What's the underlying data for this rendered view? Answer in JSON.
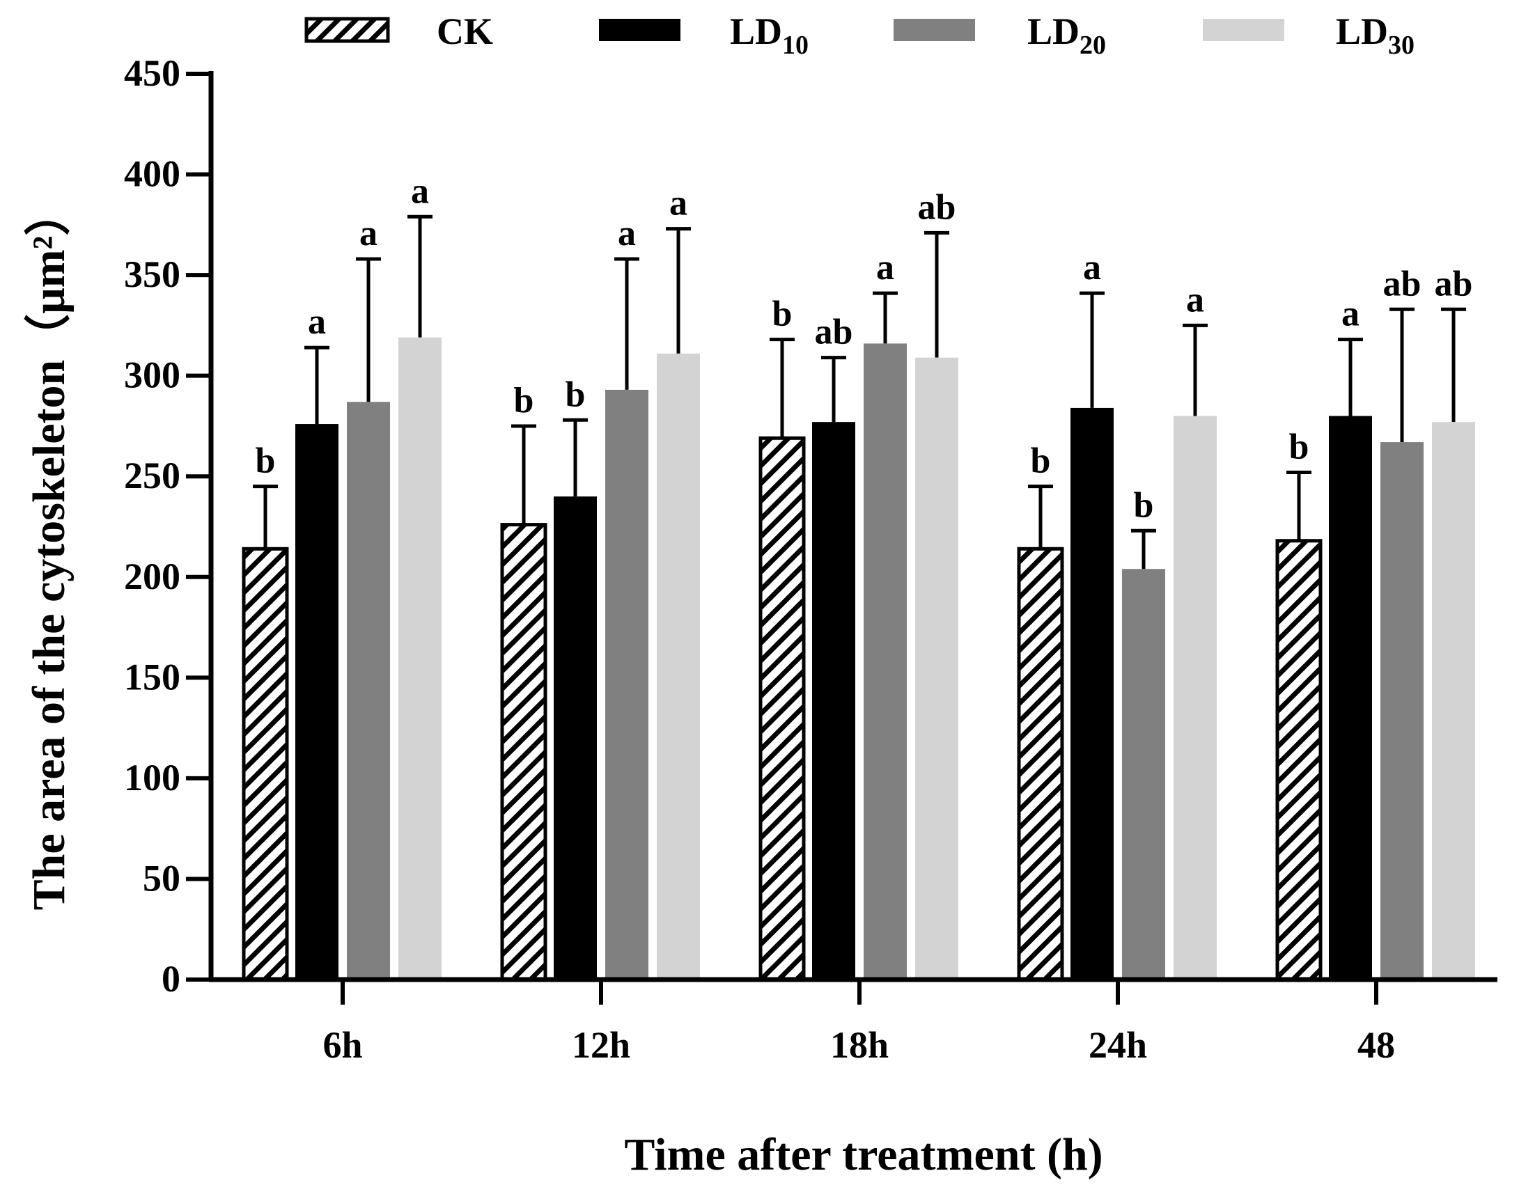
{
  "chart_data": {
    "type": "bar",
    "title": "",
    "xlabel": "Time after treatment (h)",
    "ylabel": "The area of the cytoskeleton（μm²）",
    "ylim": [
      0,
      450
    ],
    "yticks": [
      0,
      50,
      100,
      150,
      200,
      250,
      300,
      350,
      400,
      450
    ],
    "categories": [
      "6h",
      "12h",
      "18h",
      "24h",
      "48"
    ],
    "legend_position": "top",
    "series": [
      {
        "name": "CK",
        "label_main": "CK",
        "label_sub": "",
        "style": "hatched",
        "color": "#ffffff",
        "stroke": "#000000",
        "values": [
          214,
          226,
          269,
          214,
          218
        ],
        "errors": [
          31,
          49,
          49,
          31,
          34
        ],
        "letters": [
          "b",
          "b",
          "b",
          "b",
          "b"
        ]
      },
      {
        "name": "LD10",
        "label_main": "LD",
        "label_sub": "10",
        "style": "solid",
        "color": "#000000",
        "stroke": "#000000",
        "values": [
          276,
          240,
          277,
          284,
          280
        ],
        "errors": [
          38,
          38,
          32,
          57,
          38
        ],
        "letters": [
          "a",
          "b",
          "ab",
          "a",
          "a"
        ]
      },
      {
        "name": "LD20",
        "label_main": "LD",
        "label_sub": "20",
        "style": "solid",
        "color": "#808080",
        "stroke": "#808080",
        "values": [
          287,
          293,
          316,
          204,
          267
        ],
        "errors": [
          71,
          65,
          25,
          19,
          66
        ],
        "letters": [
          "a",
          "a",
          "a",
          "b",
          "ab"
        ]
      },
      {
        "name": "LD30",
        "label_main": "LD",
        "label_sub": "30",
        "style": "solid",
        "color": "#d3d3d3",
        "stroke": "#d3d3d3",
        "values": [
          319,
          311,
          309,
          280,
          277
        ],
        "errors": [
          60,
          62,
          62,
          45,
          56
        ],
        "letters": [
          "a",
          "a",
          "ab",
          "a",
          "ab"
        ]
      }
    ]
  }
}
